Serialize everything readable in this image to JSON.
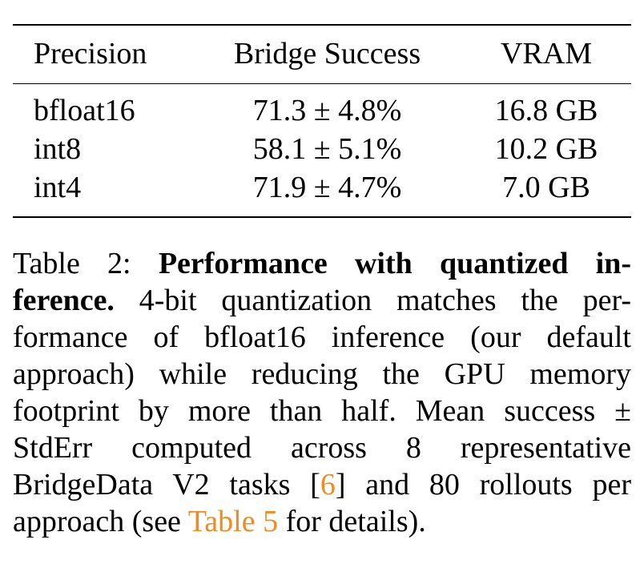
{
  "table": {
    "headers": [
      "Precision",
      "Bridge Success",
      "VRAM"
    ],
    "rows": [
      [
        "bfloat16",
        "71.3 ± 4.8%",
        "16.8 GB"
      ],
      [
        "int8",
        "58.1 ± 5.1%",
        "10.2 GB"
      ],
      [
        "int4",
        "71.9 ± 4.7%",
        "7.0 GB"
      ]
    ]
  },
  "caption": {
    "label": "Table 2:",
    "title": "Performance with quantized in-ference.",
    "text_1": "4-bit quantization matches the per-formance of bfloat16 inference (our default approach) while reducing the GPU memory footprint by more than half. Mean success ± StdErr computed across 8 representative BridgeData V2 tasks [",
    "citation": "6",
    "text_2": "] and 80 rollouts per approach (see ",
    "table_ref": "Table 5",
    "text_3": " for details)."
  },
  "colors": {
    "link": "#f08a24",
    "text": "#000000"
  }
}
